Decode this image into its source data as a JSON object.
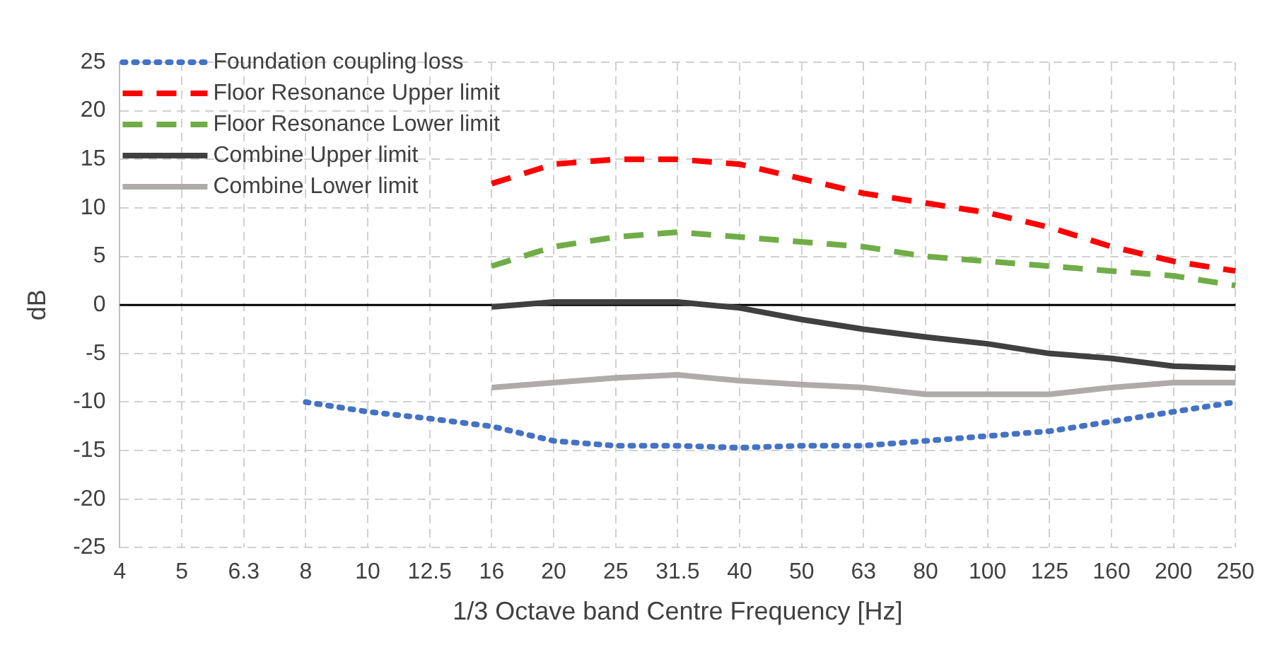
{
  "chart_data": {
    "type": "line",
    "xlabel": "1/3 Octave band Centre Frequency [Hz]",
    "ylabel": "dB",
    "categories": [
      "4",
      "5",
      "6.3",
      "8",
      "10",
      "12.5",
      "16",
      "20",
      "25",
      "31.5",
      "40",
      "50",
      "63",
      "80",
      "100",
      "125",
      "160",
      "200",
      "250"
    ],
    "ylim": [
      -25,
      25
    ],
    "yticks": [
      -25,
      -20,
      -15,
      -10,
      -5,
      0,
      5,
      10,
      15,
      20,
      25
    ],
    "grid": true,
    "legend": "top left",
    "ref_lines": [
      {
        "axis": "y",
        "value": 0,
        "color": "#000000"
      }
    ],
    "series": [
      {
        "name": "Foundation coupling loss",
        "color": "#4472c4",
        "line_style": "dotted",
        "values": [
          null,
          null,
          null,
          -10,
          -11,
          -11.7,
          -12.5,
          -14,
          -14.5,
          -14.5,
          -14.7,
          -14.5,
          -14.5,
          -14,
          -13.5,
          -13,
          -12,
          -11,
          -10
        ]
      },
      {
        "name": "Floor Resonance Upper limit",
        "color": "#ff0000",
        "line_style": "dashed",
        "values": [
          null,
          null,
          null,
          null,
          null,
          null,
          12.5,
          14.5,
          15,
          15,
          14.5,
          13,
          11.5,
          10.5,
          9.5,
          8,
          6,
          4.5,
          3.5
        ]
      },
      {
        "name": "Floor Resonance Lower limit",
        "color": "#70ad47",
        "line_style": "dashed",
        "values": [
          null,
          null,
          null,
          null,
          null,
          null,
          4,
          6,
          7,
          7.5,
          7,
          6.5,
          6,
          5,
          4.5,
          4,
          3.5,
          3,
          2
        ]
      },
      {
        "name": "Combine Upper limit",
        "color": "#404040",
        "line_style": "solid",
        "values": [
          null,
          null,
          null,
          null,
          null,
          null,
          -0.2,
          0.3,
          0.3,
          0.3,
          -0.3,
          -1.5,
          -2.5,
          -3.3,
          -4,
          -5,
          -5.5,
          -6.3,
          -6.5
        ]
      },
      {
        "name": "Combine Lower limit",
        "color": "#afabab",
        "line_style": "solid",
        "values": [
          null,
          null,
          null,
          null,
          null,
          null,
          -8.5,
          -8,
          -7.5,
          -7.2,
          -7.8,
          -8.2,
          -8.5,
          -9.2,
          -9.2,
          -9.2,
          -8.5,
          -8,
          -8
        ]
      }
    ]
  }
}
